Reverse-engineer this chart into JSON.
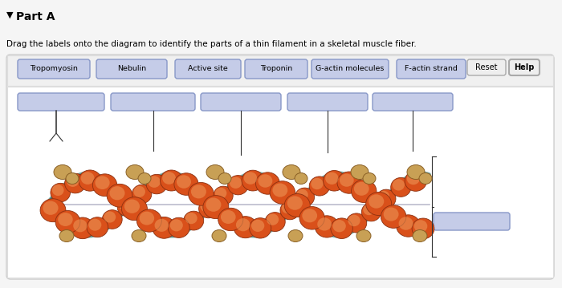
{
  "title": "Part A",
  "instruction": "Drag the labels onto the diagram to identify the parts of a thin filament in a skeletal muscle fiber.",
  "bg_color": "#f5f5f5",
  "card_bg": "#ffffff",
  "card_border": "#cccccc",
  "label_strip_bg": "#f0f0f0",
  "label_strip_border": "#dddddd",
  "diagram_bg": "#ffffff",
  "label_box_fill": "#c5cce8",
  "label_box_border": "#8898c8",
  "answer_box_fill": "#c5cce8",
  "answer_box_border": "#8898c8",
  "btn_fill": "#eeeeee",
  "btn_border": "#aaaaaa",
  "label_texts": [
    "Tropomyosin",
    "Nebulin",
    "Active site",
    "Troponin",
    "G-actin molecules",
    "F-actin strand"
  ],
  "actin_color": "#d9501a",
  "actin_edge": "#8b3010",
  "actin_highlight": "#f0a060",
  "tropomyosin_color": "#2d7a72",
  "troponin_color": "#c8a055",
  "troponin_edge": "#8a6025",
  "nebulin_color": "#a0a0b8",
  "line_color": "#333333"
}
